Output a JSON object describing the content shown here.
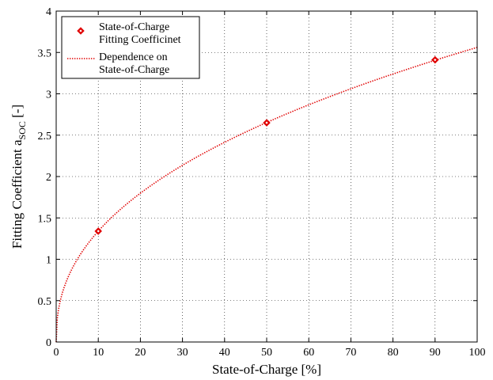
{
  "chart_data": {
    "type": "scatter",
    "xlabel": "State-of-Charge [%]",
    "ylabel_main": "Fitting Coefficient a",
    "ylabel_sub": "SOC",
    "ylabel_unit": " [-]",
    "xlim": [
      0,
      100
    ],
    "ylim": [
      0,
      4
    ],
    "xticks": [
      0,
      10,
      20,
      30,
      40,
      50,
      60,
      70,
      80,
      90,
      100
    ],
    "yticks": [
      0,
      0.5,
      1,
      1.5,
      2,
      2.5,
      3,
      3.5,
      4
    ],
    "xtick_labels": [
      "0",
      "10",
      "20",
      "30",
      "40",
      "50",
      "60",
      "70",
      "80",
      "90",
      "100"
    ],
    "ytick_labels": [
      "0",
      "0.5",
      "1",
      "1.5",
      "2",
      "2.5",
      "3",
      "3.5",
      "4"
    ],
    "grid": true,
    "legend_position": "top-left",
    "series": [
      {
        "name_lines": [
          "State-of-Charge",
          "Fitting Coefficinet"
        ],
        "style": "markers",
        "marker": "diamond",
        "color": "#e00000",
        "x": [
          10,
          50,
          90
        ],
        "y": [
          1.34,
          2.65,
          3.41
        ]
      },
      {
        "name_lines": [
          "Dependence on",
          "State-of-Charge"
        ],
        "style": "dotted-line",
        "color": "#e00000",
        "x": [
          0,
          0.5,
          1,
          2,
          3,
          5,
          7.5,
          10,
          15,
          20,
          25,
          30,
          35,
          40,
          45,
          50,
          55,
          60,
          65,
          70,
          75,
          80,
          85,
          90,
          95,
          100
        ],
        "y": [
          0,
          0.32,
          0.45,
          0.63,
          0.77,
          0.99,
          1.21,
          1.34,
          1.63,
          1.87,
          2.08,
          2.27,
          2.44,
          2.61,
          2.76,
          2.9,
          3.03,
          3.16,
          3.28,
          3.4,
          3.51,
          3.62,
          3.72,
          3.41,
          3.51,
          3.57
        ]
      }
    ]
  }
}
